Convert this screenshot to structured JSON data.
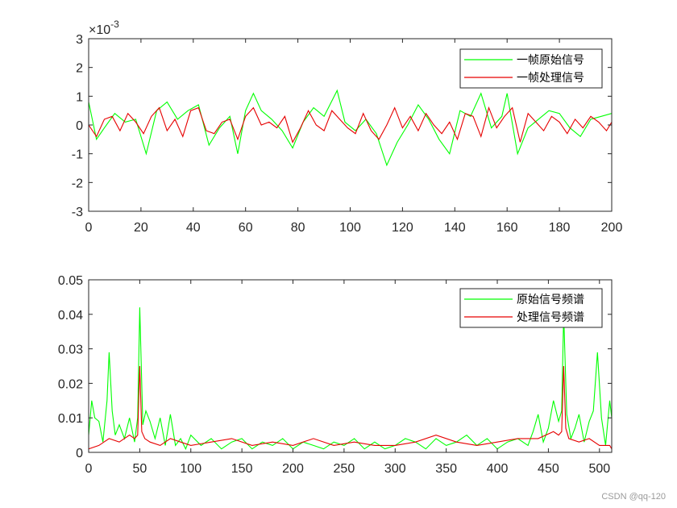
{
  "watermark": "CSDN @qq-120",
  "chart_data": [
    {
      "type": "line",
      "title": "",
      "xlabel": "",
      "ylabel": "",
      "xlim": [
        0,
        200
      ],
      "ylim": [
        -3,
        3
      ],
      "y_multiplier": {
        "base": "×10",
        "exponent": "-3"
      },
      "xticks": [
        0,
        20,
        40,
        60,
        80,
        100,
        120,
        140,
        160,
        180,
        200
      ],
      "xtick_labels": [
        "0",
        "20",
        "40",
        "60",
        "80",
        "100",
        "120",
        "140",
        "160",
        "180",
        "200"
      ],
      "yticks": [
        -3,
        -2,
        -1,
        0,
        1,
        2,
        3
      ],
      "ytick_labels": [
        "-3",
        "-2",
        "-1",
        "0",
        "1",
        "2",
        "3"
      ],
      "grid": false,
      "legend_position": "top-right",
      "series": [
        {
          "name": "一帧原始信号",
          "color": "#00ff00",
          "x": [
            0,
            3,
            6,
            10,
            14,
            18,
            22,
            26,
            30,
            34,
            38,
            42,
            46,
            50,
            54,
            57,
            60,
            63,
            66,
            70,
            74,
            78,
            82,
            86,
            90,
            95,
            98,
            102,
            106,
            110,
            114,
            118,
            122,
            126,
            130,
            134,
            138,
            142,
            146,
            150,
            154,
            158,
            160,
            164,
            168,
            172,
            176,
            180,
            184,
            188,
            192,
            196,
            200
          ],
          "y": [
            0.8,
            -0.5,
            -0.1,
            0.4,
            0.1,
            0.2,
            -1.0,
            0.5,
            0.8,
            0.2,
            0.5,
            0.7,
            -0.7,
            -0.1,
            0.3,
            -1.0,
            0.5,
            1.1,
            0.5,
            0.2,
            -0.2,
            -0.8,
            0.1,
            0.6,
            0.3,
            1.2,
            0.1,
            -0.2,
            0.2,
            -0.3,
            -1.4,
            -0.6,
            0.0,
            0.7,
            0.2,
            -0.5,
            -1.0,
            0.5,
            0.3,
            1.1,
            -0.1,
            0.3,
            1.1,
            -1.0,
            -0.1,
            0.2,
            0.5,
            0.4,
            -0.1,
            -0.4,
            0.2,
            0.3,
            0.4
          ]
        },
        {
          "name": "一帧处理信号",
          "color": "#e60000",
          "x": [
            0,
            3,
            6,
            9,
            12,
            15,
            18,
            21,
            24,
            27,
            30,
            33,
            36,
            39,
            42,
            45,
            48,
            51,
            54,
            57,
            60,
            63,
            66,
            69,
            72,
            75,
            78,
            81,
            84,
            87,
            90,
            93,
            96,
            99,
            102,
            105,
            108,
            111,
            114,
            117,
            120,
            123,
            126,
            129,
            132,
            135,
            138,
            141,
            144,
            147,
            150,
            153,
            156,
            159,
            162,
            165,
            168,
            171,
            174,
            177,
            180,
            183,
            186,
            189,
            192,
            195,
            198,
            200
          ],
          "y": [
            0.0,
            -0.4,
            0.2,
            0.3,
            -0.2,
            0.4,
            0.1,
            -0.3,
            0.3,
            0.6,
            -0.2,
            0.2,
            -0.4,
            0.5,
            0.6,
            -0.2,
            -0.3,
            0.1,
            0.2,
            -0.5,
            0.3,
            0.6,
            0.0,
            0.1,
            -0.1,
            0.3,
            -0.6,
            -0.1,
            0.5,
            0.0,
            -0.2,
            0.5,
            0.2,
            -0.1,
            -0.3,
            0.4,
            -0.2,
            -0.5,
            0.0,
            0.6,
            -0.1,
            0.3,
            -0.2,
            0.4,
            0.0,
            -0.3,
            0.1,
            -0.5,
            0.4,
            0.3,
            -0.4,
            0.6,
            -0.1,
            0.3,
            0.6,
            -0.6,
            0.4,
            0.1,
            -0.2,
            0.3,
            0.1,
            -0.3,
            0.2,
            -0.1,
            0.3,
            0.1,
            -0.2,
            0.1
          ]
        }
      ]
    },
    {
      "type": "line",
      "title": "",
      "xlabel": "",
      "ylabel": "",
      "xlim": [
        0,
        512
      ],
      "ylim": [
        0,
        0.05
      ],
      "xticks": [
        0,
        50,
        100,
        150,
        200,
        250,
        300,
        350,
        400,
        450,
        500
      ],
      "xtick_labels": [
        "0",
        "50",
        "100",
        "150",
        "200",
        "250",
        "300",
        "350",
        "400",
        "450",
        "500"
      ],
      "yticks": [
        0,
        0.01,
        0.02,
        0.03,
        0.04,
        0.05
      ],
      "ytick_labels": [
        "0",
        "0.01",
        "0.02",
        "0.03",
        "0.04",
        "0.05"
      ],
      "grid": false,
      "legend_position": "top-right",
      "series": [
        {
          "name": "原始信号频谱",
          "color": "#00ff00",
          "x": [
            0,
            3,
            6,
            10,
            14,
            18,
            20,
            23,
            26,
            30,
            35,
            40,
            45,
            48,
            50,
            53,
            56,
            60,
            65,
            70,
            75,
            80,
            85,
            90,
            95,
            100,
            110,
            120,
            130,
            140,
            150,
            160,
            170,
            180,
            190,
            200,
            210,
            220,
            230,
            240,
            250,
            260,
            270,
            280,
            290,
            300,
            310,
            320,
            330,
            340,
            350,
            360,
            370,
            380,
            390,
            400,
            410,
            420,
            430,
            435,
            440,
            445,
            450,
            455,
            460,
            463,
            465,
            468,
            472,
            476,
            480,
            485,
            490,
            494,
            498,
            502,
            506,
            510,
            512
          ],
          "y": [
            0.005,
            0.015,
            0.01,
            0.009,
            0.003,
            0.015,
            0.029,
            0.012,
            0.005,
            0.008,
            0.004,
            0.01,
            0.003,
            0.01,
            0.042,
            0.008,
            0.012,
            0.009,
            0.004,
            0.01,
            0.002,
            0.011,
            0.002,
            0.004,
            0.001,
            0.005,
            0.002,
            0.004,
            0.001,
            0.003,
            0.004,
            0.001,
            0.003,
            0.002,
            0.004,
            0.001,
            0.003,
            0.002,
            0.001,
            0.003,
            0.002,
            0.004,
            0.001,
            0.003,
            0.001,
            0.002,
            0.004,
            0.003,
            0.001,
            0.004,
            0.002,
            0.003,
            0.005,
            0.002,
            0.004,
            0.001,
            0.003,
            0.004,
            0.002,
            0.006,
            0.011,
            0.003,
            0.007,
            0.015,
            0.009,
            0.012,
            0.04,
            0.011,
            0.004,
            0.007,
            0.011,
            0.003,
            0.009,
            0.012,
            0.029,
            0.01,
            0.002,
            0.015,
            0.01
          ]
        },
        {
          "name": "处理信号频谱",
          "color": "#e60000",
          "x": [
            0,
            10,
            20,
            30,
            40,
            45,
            48,
            50,
            52,
            55,
            60,
            70,
            80,
            90,
            100,
            120,
            140,
            160,
            180,
            200,
            220,
            240,
            260,
            280,
            300,
            320,
            340,
            360,
            380,
            400,
            420,
            440,
            455,
            460,
            463,
            465,
            467,
            470,
            480,
            490,
            500,
            510,
            512
          ],
          "y": [
            0.001,
            0.002,
            0.004,
            0.003,
            0.005,
            0.004,
            0.005,
            0.025,
            0.006,
            0.004,
            0.003,
            0.002,
            0.004,
            0.003,
            0.002,
            0.003,
            0.004,
            0.002,
            0.003,
            0.002,
            0.004,
            0.002,
            0.003,
            0.002,
            0.002,
            0.003,
            0.005,
            0.003,
            0.002,
            0.003,
            0.004,
            0.004,
            0.006,
            0.005,
            0.006,
            0.025,
            0.007,
            0.004,
            0.003,
            0.004,
            0.002,
            0.002,
            0.001
          ]
        }
      ]
    }
  ]
}
